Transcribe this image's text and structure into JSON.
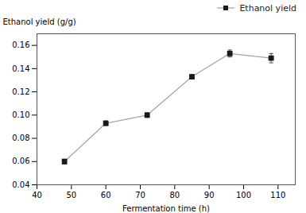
{
  "chart_data": {
    "type": "line",
    "x": [
      48,
      60,
      72,
      85,
      96,
      108
    ],
    "series": [
      {
        "name": "Ethanol yield",
        "color": "#1a1a1a",
        "marker": "square",
        "line_style": "solid",
        "values": [
          0.06,
          0.093,
          0.1,
          0.133,
          0.153,
          0.149
        ],
        "yerr": [
          0.002,
          0.002,
          0.002,
          0.002,
          0.003,
          0.004
        ]
      }
    ],
    "xlabel": "Fermentation time (h)",
    "ylabel": "Ethanol yield (g/g)",
    "xlim": [
      40,
      115
    ],
    "ylim": [
      0.04,
      0.17
    ],
    "xticks": [
      40,
      50,
      60,
      70,
      80,
      90,
      100,
      110
    ],
    "yticks": [
      0.04,
      0.06,
      0.08,
      {
        "value": 0.1,
        "label": "0.10"
      },
      0.12,
      0.14,
      0.16
    ],
    "legend": "upper right",
    "grid": false
  }
}
